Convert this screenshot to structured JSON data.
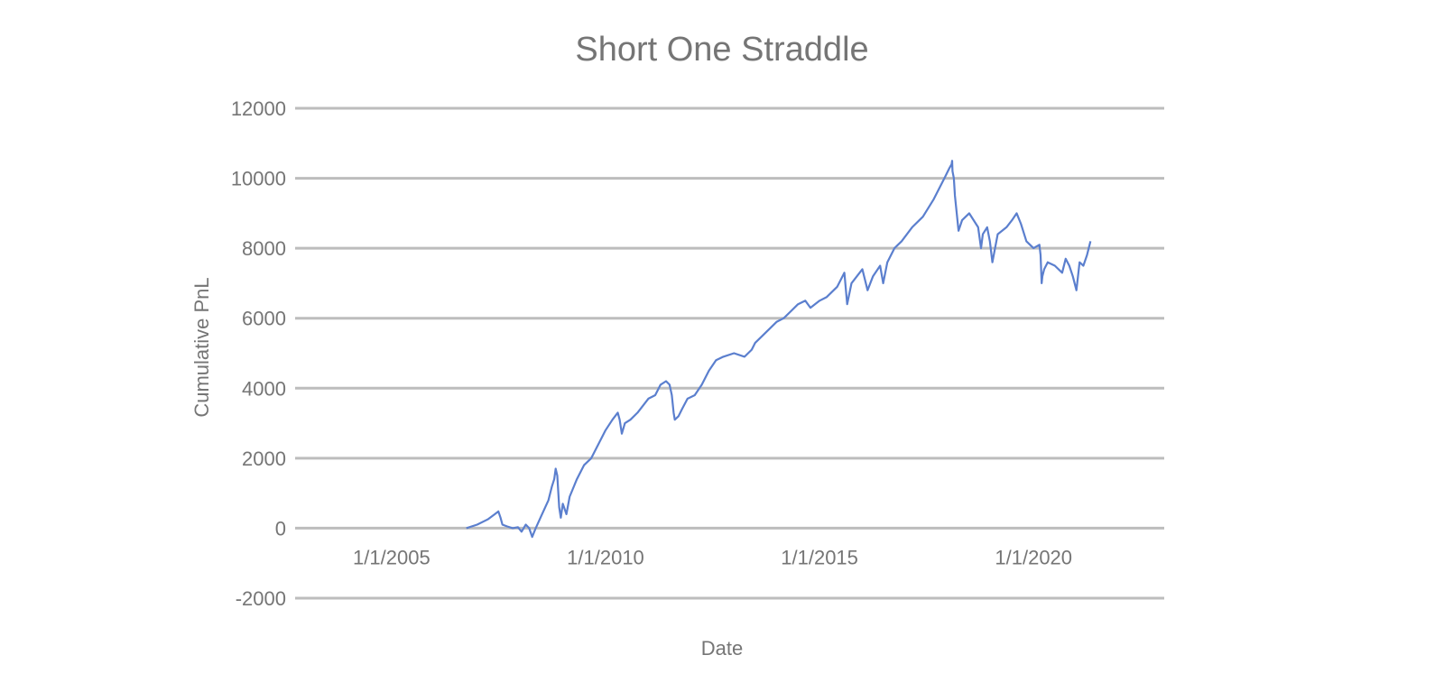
{
  "chart_data": {
    "type": "line",
    "title": "Short One Straddle",
    "xlabel": "Date",
    "ylabel": "Cumulative PnL",
    "ylim": [
      -2000,
      12000
    ],
    "yticks": [
      "-2000",
      "0",
      "2000",
      "4000",
      "6000",
      "8000",
      "10000",
      "12000"
    ],
    "yticks_values": [
      -2000,
      0,
      2000,
      4000,
      6000,
      8000,
      10000,
      12000
    ],
    "xticks": [
      "1/1/2005",
      "1/1/2010",
      "1/1/2015",
      "1/1/2020"
    ],
    "xlim": [
      "2002-10-01",
      "2023-01-20"
    ],
    "grid": true,
    "colors": {
      "series": "#5b7fce",
      "grid": "#bdbdbd",
      "text": "#757575"
    },
    "series": [
      {
        "x": [
          "2006-10-01",
          "2007-01-01",
          "2007-04-01",
          "2007-06-01",
          "2007-07-01",
          "2007-07-20",
          "2007-08-05",
          "2007-09-15",
          "2007-11-01",
          "2007-12-15",
          "2008-01-15",
          "2008-02-20",
          "2008-03-20",
          "2008-04-15",
          "2008-05-15",
          "2008-07-01",
          "2008-09-01",
          "2008-10-01",
          "2008-10-20",
          "2008-11-01",
          "2008-11-15",
          "2008-12-01",
          "2008-12-15",
          "2009-01-01",
          "2009-02-01",
          "2009-03-01",
          "2009-05-01",
          "2009-07-01",
          "2009-09-01",
          "2009-11-01",
          "2010-01-01",
          "2010-03-01",
          "2010-04-15",
          "2010-05-01",
          "2010-05-20",
          "2010-06-15",
          "2010-08-01",
          "2010-10-01",
          "2011-01-01",
          "2011-03-01",
          "2011-04-15",
          "2011-06-01",
          "2011-07-01",
          "2011-07-20",
          "2011-08-05",
          "2011-08-15",
          "2011-09-15",
          "2011-10-15",
          "2011-12-01",
          "2012-02-01",
          "2012-04-01",
          "2012-06-01",
          "2012-08-01",
          "2012-10-01",
          "2013-01-01",
          "2013-04-01",
          "2013-06-01",
          "2013-07-01",
          "2013-09-01",
          "2013-11-01",
          "2014-01-01",
          "2014-03-01",
          "2014-05-01",
          "2014-07-01",
          "2014-09-01",
          "2014-10-15",
          "2015-01-01",
          "2015-03-01",
          "2015-06-01",
          "2015-08-01",
          "2015-08-25",
          "2015-10-01",
          "2016-01-01",
          "2016-02-15",
          "2016-04-01",
          "2016-06-01",
          "2016-06-27",
          "2016-08-01",
          "2016-10-01",
          "2016-12-01",
          "2017-03-01",
          "2017-06-01",
          "2017-09-01",
          "2017-12-01",
          "2018-01-15",
          "2018-02-01",
          "2018-02-05",
          "2018-02-08",
          "2018-02-20",
          "2018-03-01",
          "2018-04-01",
          "2018-05-01",
          "2018-07-01",
          "2018-09-15",
          "2018-10-10",
          "2018-10-25",
          "2018-12-01",
          "2018-12-24",
          "2019-01-15",
          "2019-03-01",
          "2019-05-15",
          "2019-07-01",
          "2019-08-10",
          "2019-09-15",
          "2019-11-01",
          "2020-01-01",
          "2020-02-20",
          "2020-03-01",
          "2020-03-10",
          "2020-03-16",
          "2020-04-01",
          "2020-05-01",
          "2020-07-01",
          "2020-09-01",
          "2020-10-01",
          "2020-11-01",
          "2020-12-01",
          "2021-01-01",
          "2021-01-28",
          "2021-03-01",
          "2021-04-01",
          "2021-05-01"
        ],
        "y": [
          0,
          100,
          250,
          400,
          480,
          300,
          100,
          50,
          0,
          30,
          -100,
          100,
          0,
          -250,
          0,
          350,
          800,
          1200,
          1400,
          1700,
          1500,
          600,
          300,
          700,
          400,
          900,
          1400,
          1800,
          2000,
          2400,
          2800,
          3100,
          3300,
          3100,
          2700,
          3000,
          3100,
          3300,
          3700,
          3800,
          4100,
          4200,
          4100,
          3800,
          3300,
          3100,
          3200,
          3400,
          3700,
          3800,
          4100,
          4500,
          4800,
          4900,
          5000,
          4900,
          5100,
          5300,
          5500,
          5700,
          5900,
          6000,
          6200,
          6400,
          6500,
          6300,
          6500,
          6600,
          6900,
          7300,
          6400,
          7000,
          7400,
          6800,
          7200,
          7500,
          7000,
          7600,
          8000,
          8200,
          8600,
          8900,
          9400,
          10000,
          10300,
          10400,
          10500,
          10200,
          10000,
          9500,
          8500,
          8800,
          9000,
          8600,
          8000,
          8400,
          8600,
          8200,
          7600,
          8400,
          8600,
          8800,
          9000,
          8700,
          8200,
          8000,
          8100,
          7800,
          7000,
          7200,
          7400,
          7600,
          7500,
          7300,
          7700,
          7500,
          7200,
          6800,
          7600,
          7500,
          7800,
          8200
        ]
      }
    ]
  }
}
